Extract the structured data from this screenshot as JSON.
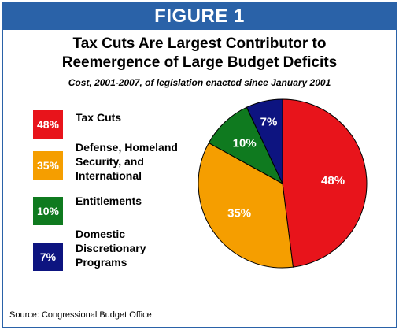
{
  "header": {
    "label": "FIGURE 1"
  },
  "title_line1": "Tax Cuts Are Largest Contributor to",
  "title_line2": "Reemergence of Large Budget Deficits",
  "subtitle": "Cost, 2001-2007, of legislation enacted since January 2001",
  "source": "Source: Congressional Budget Office",
  "colors": {
    "frame": "#2a62a8"
  },
  "chart_data": {
    "type": "pie",
    "title": "Tax Cuts Are Largest Contributor to Reemergence of Large Budget Deficits",
    "subtitle": "Cost, 2001-2007, of legislation enacted since January 2001",
    "legend_position": "left",
    "slices": [
      {
        "name": "Tax Cuts",
        "value": 48,
        "label": "48%",
        "color": "#e8141b"
      },
      {
        "name": "Defense, Homeland Security, and International",
        "value": 35,
        "label": "35%",
        "color": "#f59e00"
      },
      {
        "name": "Entitlements",
        "value": 10,
        "label": "10%",
        "color": "#0f7a1f"
      },
      {
        "name": "Domestic Discretionary Programs",
        "value": 7,
        "label": "7%",
        "color": "#0d1480"
      }
    ]
  },
  "legend": [
    {
      "swatch": "48%",
      "label": "Tax Cuts"
    },
    {
      "swatch": "35%",
      "label": "Defense, Homeland\nSecurity, and\nInternational"
    },
    {
      "swatch": "10%",
      "label": "Entitlements"
    },
    {
      "swatch": "7%",
      "label": "Domestic\nDiscretionary\nPrograms"
    }
  ]
}
